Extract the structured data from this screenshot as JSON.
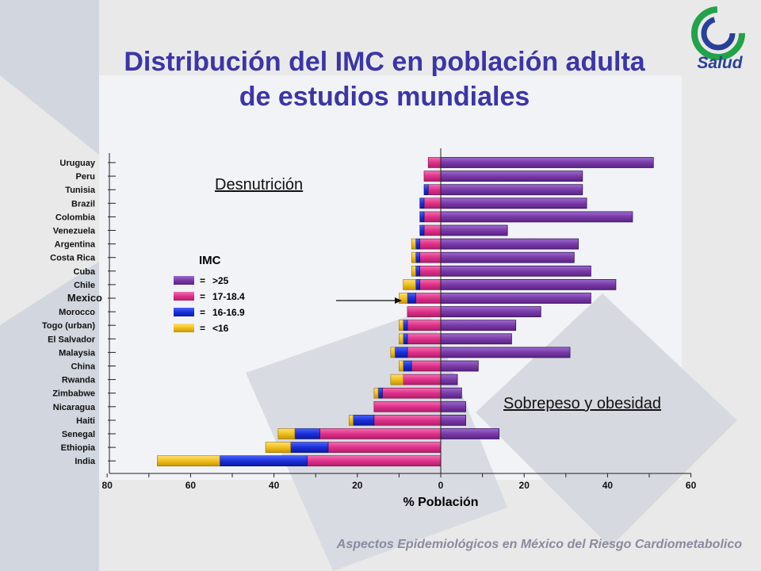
{
  "header": {
    "title_line1": "Distribución del IMC en población adulta",
    "title_line2": "de estudios mundiales",
    "logo_text": "Salud"
  },
  "footer": "Aspectos Epidemiológicos en México del Riesgo Cardiometabolico",
  "annotations": {
    "left": "Desnutrición",
    "right": "Sobrepeso y obesidad",
    "highlight_country": "Mexico"
  },
  "legend": {
    "title": "IMC",
    "items": [
      {
        "eq": "=",
        "label": ">25",
        "color": "#7a3aa6"
      },
      {
        "eq": "=",
        "label": "17-18.4",
        "color": "#e0308a"
      },
      {
        "eq": "=",
        "label": "16-16.9",
        "color": "#1a2fd8"
      },
      {
        "eq": "=",
        "label": "<16",
        "color": "#f0c020"
      }
    ]
  },
  "colors": {
    "title": "#3c35a8",
    "logo_green": "#22a24a",
    "logo_blue": "#2a3f9c"
  },
  "chart_data": {
    "type": "bar",
    "orientation": "horizontal-diverging",
    "xlabel": "% Población",
    "x_ticks": [
      "80",
      "60",
      "40",
      "20",
      "0",
      "20",
      "40",
      "60"
    ],
    "xlim": [
      -80,
      60
    ],
    "categories": [
      "Uruguay",
      "Peru",
      "Tunisia",
      "Brazil",
      "Colombia",
      "Venezuela",
      "Argentina",
      "Costa Rica",
      "Cuba",
      "Chile",
      "Mexico",
      "Morocco",
      "Togo (urban)",
      "El Salvador",
      "Malaysia",
      "China",
      "Rwanda",
      "Zimbabwe",
      "Nicaragua",
      "Haiti",
      "Senegal",
      "Ethiopia",
      "India"
    ],
    "series": [
      {
        "name": ">25",
        "side": "right",
        "values": [
          51,
          34,
          34,
          35,
          46,
          16,
          33,
          32,
          36,
          42,
          36,
          24,
          18,
          17,
          31,
          9,
          4,
          5,
          6,
          6,
          14,
          0,
          0
        ]
      },
      {
        "name": "17-18.4",
        "side": "left",
        "values": [
          3,
          4,
          3,
          4,
          4,
          4,
          5,
          5,
          5,
          5,
          6,
          8,
          8,
          8,
          8,
          7,
          9,
          14,
          16,
          16,
          29,
          27,
          32
        ]
      },
      {
        "name": "16-16.9",
        "side": "left",
        "values": [
          0,
          0,
          1,
          1,
          1,
          1,
          1,
          1,
          1,
          1,
          2,
          0,
          1,
          1,
          3,
          2,
          0,
          1,
          0,
          5,
          6,
          9,
          21
        ]
      },
      {
        "name": "<16",
        "side": "left",
        "values": [
          0,
          0,
          0,
          0,
          0,
          0,
          1,
          1,
          1,
          3,
          2,
          0,
          1,
          1,
          1,
          1,
          3,
          1,
          0,
          1,
          4,
          6,
          15
        ]
      }
    ]
  }
}
